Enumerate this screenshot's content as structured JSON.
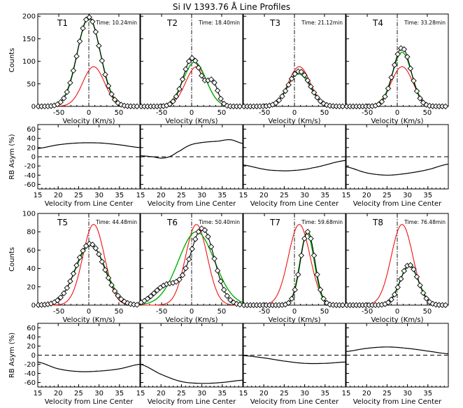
{
  "figure": {
    "title": "Si IV 1393.76 Å Line Profiles"
  },
  "colors": {
    "observed": "#000000",
    "fit": "#00b000",
    "reference": "#ee1111",
    "axis": "#000000"
  },
  "chart_data": {
    "type": "line",
    "profile_axes": {
      "xlabel": "Velocity (Km/s)",
      "ylabel": "Counts",
      "xlim": [
        -85,
        85
      ],
      "xticks": [
        -50,
        0,
        50
      ]
    },
    "rb_axes": {
      "xlabel": "Velocity from Line Center",
      "ylabel": "RB Asym (%)",
      "xlim": [
        15,
        40
      ],
      "xticks": [
        15,
        20,
        25,
        30,
        35
      ],
      "ylim": [
        -70,
        70
      ],
      "yticks": [
        -60,
        -40,
        -20,
        0,
        20,
        40,
        60
      ]
    },
    "rows": [
      {
        "ylim": [
          0,
          205
        ],
        "yticks": [
          0,
          50,
          100,
          150,
          200
        ]
      },
      {
        "ylim": [
          0,
          100
        ],
        "yticks": [
          0,
          20,
          40,
          60,
          80,
          100
        ]
      }
    ],
    "reference_profile": {
      "center": 8,
      "sigma": 18,
      "amp": 88
    },
    "panels": [
      {
        "label": "T1",
        "time": "Time: 10.24min",
        "observed": [
          {
            "amp": 198,
            "center": 0,
            "sigma": 19
          }
        ],
        "fit": {
          "amp": 195,
          "center": 0,
          "sigma": 19.5
        },
        "rb": {
          "x": [
            15,
            20,
            25,
            30,
            35,
            40
          ],
          "y": [
            18,
            26,
            30,
            30,
            26,
            20
          ]
        }
      },
      {
        "label": "T2",
        "time": "Time: 18.40min",
        "observed": [
          {
            "amp": 107,
            "center": 1,
            "sigma": 15
          },
          {
            "amp": 50,
            "center": 35,
            "sigma": 9
          }
        ],
        "fit": {
          "amp": 98,
          "center": 5,
          "sigma": 19
        },
        "rb": {
          "x": [
            15,
            18,
            20,
            22,
            24,
            27,
            30,
            34,
            37,
            40
          ],
          "y": [
            2,
            0,
            -3,
            0,
            10,
            25,
            31,
            34,
            37,
            29
          ]
        }
      },
      {
        "label": "T3",
        "time": "Time: 21.12min",
        "observed": [
          {
            "amp": 78,
            "center": 8,
            "sigma": 18
          }
        ],
        "fit": {
          "amp": 72,
          "center": 7,
          "sigma": 19
        },
        "rb": {
          "x": [
            15,
            20,
            23,
            27,
            32,
            40
          ],
          "y": [
            -18,
            -27,
            -30,
            -30,
            -24,
            -8
          ]
        }
      },
      {
        "label": "T4",
        "time": "Time: 33.28min",
        "observed": [
          {
            "amp": 130,
            "center": 8,
            "sigma": 15
          }
        ],
        "fit": {
          "amp": 120,
          "center": 8,
          "sigma": 16
        },
        "rb": {
          "x": [
            15,
            20,
            25,
            30,
            35,
            40
          ],
          "y": [
            -22,
            -35,
            -40,
            -36,
            -28,
            -16
          ]
        }
      },
      {
        "label": "T5",
        "time": "Time: 44.48min",
        "observed": [
          {
            "amp": 67,
            "center": 2,
            "sigma": 24
          }
        ],
        "fit": {
          "amp": 65,
          "center": 3,
          "sigma": 25
        },
        "rb": {
          "x": [
            15,
            20,
            25,
            30,
            35,
            40
          ],
          "y": [
            -15,
            -30,
            -36,
            -35,
            -30,
            -20
          ]
        }
      },
      {
        "label": "T6",
        "time": "Time: 50.40min",
        "observed": [
          {
            "amp": 83,
            "center": 18,
            "sigma": 20
          },
          {
            "amp": 22,
            "center": -40,
            "sigma": 22
          }
        ],
        "fit": {
          "amp": 80,
          "center": 8,
          "sigma": 30
        },
        "rb": {
          "x": [
            15,
            20,
            25,
            30,
            35,
            40
          ],
          "y": [
            -20,
            -42,
            -58,
            -62,
            -60,
            -55
          ]
        }
      },
      {
        "label": "T7",
        "time": "Time: 59.68min",
        "observed": [
          {
            "amp": 80,
            "center": 22,
            "sigma": 12
          }
        ],
        "fit": {
          "amp": 78,
          "center": 21,
          "sigma": 12
        },
        "rb": {
          "x": [
            15,
            20,
            25,
            30,
            35,
            40
          ],
          "y": [
            -1,
            -6,
            -13,
            -18,
            -18,
            -15
          ]
        }
      },
      {
        "label": "T8",
        "time": "Time: 76.48min",
        "observed": [
          {
            "amp": 44,
            "center": 20,
            "sigma": 15
          }
        ],
        "fit": {
          "amp": 42,
          "center": 20,
          "sigma": 16
        },
        "rb": {
          "x": [
            15,
            20,
            25,
            30,
            35,
            40
          ],
          "y": [
            8,
            15,
            18,
            15,
            9,
            3
          ]
        }
      }
    ]
  }
}
